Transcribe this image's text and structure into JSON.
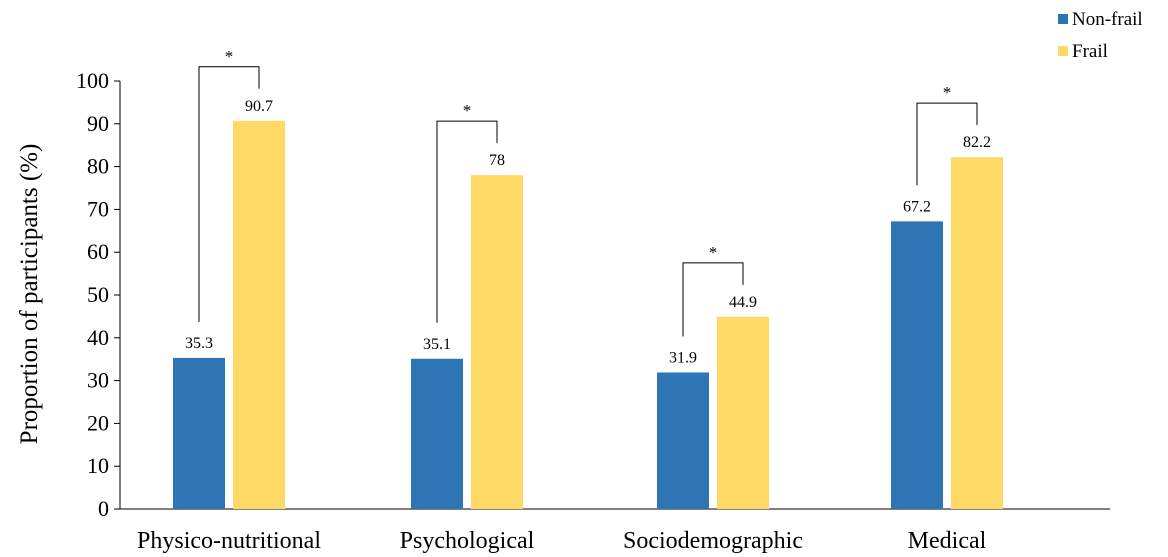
{
  "chart_data": {
    "type": "bar",
    "title": "",
    "xlabel": "",
    "ylabel": "Proportion of participants (%)",
    "ylim": [
      0,
      100
    ],
    "yticks": [
      0,
      10,
      20,
      30,
      40,
      50,
      60,
      70,
      80,
      90,
      100
    ],
    "grid": false,
    "legend_position": "top-right",
    "categories": [
      "Physico-nutritional",
      "Psychological",
      "Sociodemographic",
      "Medical"
    ],
    "series": [
      {
        "name": "Non-frail",
        "color": "#2E75B6",
        "values": [
          35.3,
          35.1,
          31.9,
          67.2
        ],
        "labels": [
          "35.3",
          "35.1",
          "31.9",
          "67.2"
        ]
      },
      {
        "name": "Frail",
        "color": "#FFD966",
        "values": [
          90.7,
          78,
          44.9,
          82.2
        ],
        "labels": [
          "90.7",
          "78",
          "44.9",
          "82.2"
        ]
      }
    ],
    "significance": [
      {
        "category": "Physico-nutritional",
        "mark": "*"
      },
      {
        "category": "Psychological",
        "mark": "*"
      },
      {
        "category": "Sociodemographic",
        "mark": "*"
      },
      {
        "category": "Medical",
        "mark": "*"
      }
    ]
  }
}
